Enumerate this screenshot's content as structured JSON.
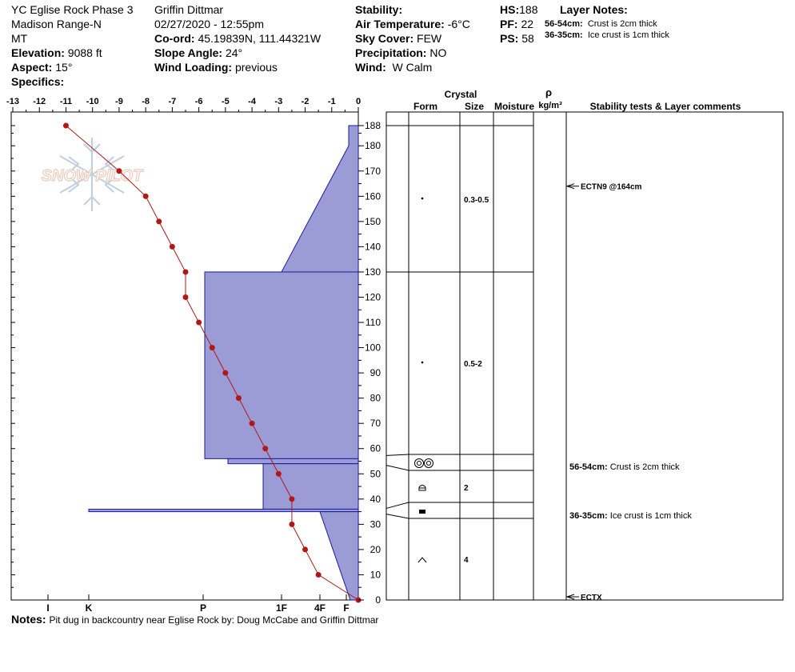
{
  "header": {
    "pit_name": "YC Eglise Rock Phase 3",
    "range": "Madison Range-N",
    "state": "MT",
    "elevation_label": "Elevation:",
    "elevation": "9088 ft",
    "aspect_label": "Aspect:",
    "aspect": "15°",
    "specifics_label": "Specifics:",
    "observer": "Griffin Dittmar",
    "datetime": "02/27/2020 - 12:55pm",
    "coord_label": "Co-ord:",
    "coord": "45.19839N, 111.44321W",
    "slope_label": "Slope Angle:",
    "slope": "24°",
    "wind_loading_label": "Wind Loading:",
    "wind_loading": "previous",
    "stability_label": "Stability:",
    "air_temp_label": "Air Temperature:",
    "air_temp": "-6°C",
    "sky_label": "Sky Cover:",
    "sky": "FEW",
    "precip_label": "Precipitation:",
    "precip": "NO",
    "wind_label": "Wind:",
    "wind": "W Calm",
    "hs_label": "HS:",
    "hs": "188",
    "pf_label": "PF:",
    "pf": "22",
    "ps_label": "PS:",
    "ps": "58",
    "layer_notes_label": "Layer Notes:",
    "layer_notes": [
      {
        "range": "56-54cm:",
        "text": "Crust is 2cm thick"
      },
      {
        "range": "36-35cm:",
        "text": "Ice crust is 1cm thick"
      }
    ]
  },
  "notes_label": "Notes:",
  "notes": "Pit dug in backcountry near Eglise Rock by: Doug McCabe and Griffin Dittmar",
  "logo_text": "SNOW PILOT",
  "table_headers": {
    "crystal": "Crystal",
    "form": "Form",
    "size": "Size",
    "moisture": "Moisture",
    "rho": "ρ",
    "density_unit": "kg/m³",
    "comments": "Stability tests & Layer comments"
  },
  "colors": {
    "hardness_fill": "#9b9bd6",
    "hardness_stroke": "#1a1aa0",
    "temp": "#b01818"
  },
  "chart_data": {
    "type": "line",
    "temp_axis": {
      "min": -13,
      "max": 0,
      "ticks": [
        -13,
        -12,
        -11,
        -10,
        -9,
        -8,
        -7,
        -6,
        -5,
        -4,
        -3,
        -2,
        -1,
        0
      ]
    },
    "height_axis": {
      "min": 0,
      "max": 188,
      "ticks": [
        0,
        10,
        20,
        30,
        40,
        50,
        60,
        70,
        80,
        90,
        100,
        110,
        120,
        130,
        140,
        150,
        160,
        170,
        180,
        188
      ]
    },
    "hardness_ticks": [
      "I",
      "K",
      "P",
      "1F",
      "4F",
      "F"
    ],
    "temperature_profile": [
      {
        "height": 0,
        "temp": 0
      },
      {
        "height": 10,
        "temp": -1.5
      },
      {
        "height": 20,
        "temp": -2
      },
      {
        "height": 30,
        "temp": -2.5
      },
      {
        "height": 40,
        "temp": -2.5
      },
      {
        "height": 50,
        "temp": -3
      },
      {
        "height": 60,
        "temp": -3.5
      },
      {
        "height": 70,
        "temp": -4
      },
      {
        "height": 80,
        "temp": -4.5
      },
      {
        "height": 90,
        "temp": -5
      },
      {
        "height": 100,
        "temp": -5.5
      },
      {
        "height": 110,
        "temp": -6
      },
      {
        "height": 120,
        "temp": -6.5
      },
      {
        "height": 130,
        "temp": -6.5
      },
      {
        "height": 140,
        "temp": -7
      },
      {
        "height": 150,
        "temp": -7.5
      },
      {
        "height": 160,
        "temp": -8
      },
      {
        "height": 170,
        "temp": -9
      },
      {
        "height": 188,
        "temp": -11
      }
    ],
    "layers": [
      {
        "top": 188,
        "bottom": 130,
        "form": "dot",
        "size": "0.3-0.5"
      },
      {
        "top": 130,
        "bottom": 56,
        "form": "dot",
        "size": "0.5-2"
      },
      {
        "top": 56,
        "bottom": 54,
        "form": "crust",
        "size": ""
      },
      {
        "top": 54,
        "bottom": 36,
        "form": "faceted",
        "size": "2"
      },
      {
        "top": 36,
        "bottom": 35,
        "form": "ice",
        "size": ""
      },
      {
        "top": 35,
        "bottom": 0,
        "form": "depth-hoar",
        "size": "4"
      }
    ],
    "stability_tests": [
      {
        "label": "ECTN9 @164cm",
        "height": 164
      },
      {
        "label": "ECTX",
        "height": 0
      }
    ],
    "layer_comments": [
      {
        "range": "56-54cm:",
        "text": "Crust is 2cm thick",
        "height": 55
      },
      {
        "range": "36-35cm:",
        "text": "Ice crust is 1cm thick",
        "height": 35.5
      }
    ]
  }
}
